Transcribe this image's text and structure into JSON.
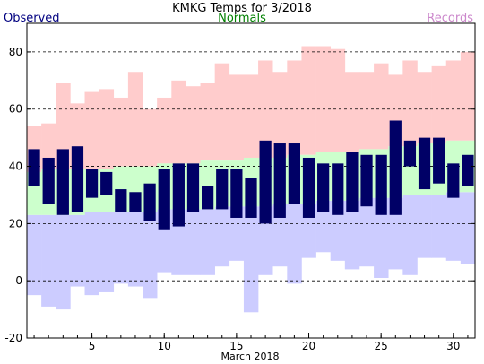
{
  "chart_data": {
    "type": "bar",
    "title": "KMKG Temps for 3/2018",
    "xlabel": "March 2018",
    "ylabel": "",
    "ylim": [
      -20,
      90
    ],
    "xlim": [
      0.5,
      31.5
    ],
    "yticks": [
      -20,
      0,
      20,
      40,
      60,
      80
    ],
    "xticks": [
      5,
      10,
      15,
      20,
      25,
      30
    ],
    "grid": "horizontal dashed",
    "legend": {
      "observed": "Observed",
      "normals": "Normals",
      "records": "Records"
    },
    "days": [
      1,
      2,
      3,
      4,
      5,
      6,
      7,
      8,
      9,
      10,
      11,
      12,
      13,
      14,
      15,
      16,
      17,
      18,
      19,
      20,
      21,
      22,
      23,
      24,
      25,
      26,
      27,
      28,
      29,
      30,
      31
    ],
    "series": [
      {
        "name": "Observed",
        "high": [
          46,
          43,
          46,
          47,
          39,
          38,
          32,
          31,
          34,
          39,
          41,
          41,
          33,
          39,
          39,
          36,
          49,
          48,
          48,
          43,
          41,
          41,
          45,
          44,
          44,
          56,
          49,
          50,
          50,
          41,
          44
        ],
        "low": [
          33,
          27,
          23,
          24,
          29,
          30,
          24,
          24,
          21,
          18,
          19,
          24,
          25,
          25,
          22,
          22,
          20,
          22,
          27,
          22,
          24,
          23,
          24,
          26,
          23,
          23,
          40,
          32,
          34,
          29,
          33
        ]
      },
      {
        "name": "Normals",
        "high": [
          38,
          39,
          39,
          39,
          39,
          39,
          40,
          40,
          40,
          41,
          41,
          41,
          42,
          42,
          42,
          43,
          43,
          43,
          44,
          44,
          45,
          45,
          45,
          46,
          46,
          47,
          47,
          48,
          48,
          49,
          49
        ],
        "low": [
          23,
          23,
          23,
          23,
          24,
          24,
          24,
          24,
          24,
          25,
          25,
          25,
          25,
          26,
          26,
          26,
          26,
          27,
          27,
          27,
          28,
          28,
          28,
          29,
          29,
          29,
          30,
          30,
          30,
          31,
          31
        ]
      },
      {
        "name": "Records",
        "high": [
          54,
          55,
          69,
          62,
          66,
          67,
          64,
          73,
          60,
          64,
          70,
          68,
          69,
          76,
          72,
          72,
          77,
          73,
          77,
          82,
          82,
          81,
          73,
          73,
          76,
          72,
          77,
          73,
          75,
          77,
          80
        ],
        "low": [
          -5,
          -9,
          -10,
          -2,
          -5,
          -4,
          -1,
          -2,
          -6,
          3,
          2,
          2,
          2,
          5,
          7,
          -11,
          2,
          5,
          -1,
          8,
          10,
          7,
          4,
          5,
          1,
          4,
          2,
          8,
          8,
          7,
          6
        ]
      }
    ],
    "colors": {
      "observed": "#000066",
      "observed_text": "#000080",
      "normals": "#ccffcc",
      "normals_text": "#008000",
      "records": "#ffcccc",
      "records_low": "#ccccff",
      "records_text": "#cc88cc",
      "grid": "#000000"
    }
  }
}
